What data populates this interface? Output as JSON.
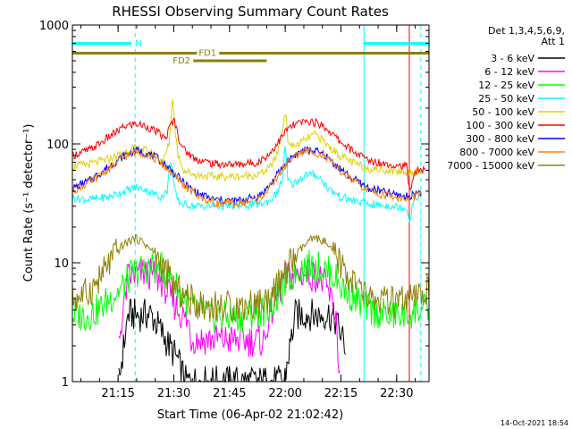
{
  "chart_data": {
    "type": "line",
    "title": "RHESSI Observing Summary Count Rates",
    "xlabel": "Start Time (06-Apr-02 21:02:42)",
    "ylabel": "Count Rate (s⁻¹ detector⁻¹)",
    "yscale": "log",
    "ylim": [
      1,
      1000
    ],
    "xlim_minutes": [
      0,
      96
    ],
    "x_ticks": [
      {
        "label": "21:15",
        "minutes": 12.3
      },
      {
        "label": "21:30",
        "minutes": 27.3
      },
      {
        "label": "21:45",
        "minutes": 42.3
      },
      {
        "label": "22:00",
        "minutes": 57.3
      },
      {
        "label": "22:15",
        "minutes": 72.3
      },
      {
        "label": "22:30",
        "minutes": 87.3
      }
    ],
    "y_ticks": [
      {
        "label": "1",
        "value": 1
      },
      {
        "label": "10",
        "value": 10
      },
      {
        "label": "100",
        "value": 100
      },
      {
        "label": "1000",
        "value": 1000
      }
    ],
    "legend": {
      "placement": "right",
      "header": [
        "Det 1,3,4,5,6,9,",
        "Att 1"
      ],
      "entries": [
        {
          "label": "3 - 6 keV",
          "color": "#000000"
        },
        {
          "label": "6 - 12 keV",
          "color": "#ff00ff"
        },
        {
          "label": "12 - 25 keV",
          "color": "#00ff00"
        },
        {
          "label": "25 - 50 keV",
          "color": "#00ffff"
        },
        {
          "label": "50 - 100 keV",
          "color": "#e0d000"
        },
        {
          "label": "100 - 300 keV",
          "color": "#ff0000"
        },
        {
          "label": "300 - 800 keV",
          "color": "#0000ff"
        },
        {
          "label": "800 - 7000 keV",
          "color": "#ff8000"
        },
        {
          "label": "7000 - 15000 keV",
          "color": "#8b8000"
        }
      ]
    },
    "flags": [
      {
        "label": "N",
        "color": "#00ffff",
        "value": 700,
        "segments": [
          [
            0,
            15.9
          ],
          [
            78.5,
            96
          ]
        ]
      },
      {
        "label": "FD1",
        "color": "#8b8000",
        "value": 580,
        "segments": [
          [
            0,
            52.3
          ],
          [
            52.3,
            96
          ]
        ]
      },
      {
        "label": "FD2",
        "color": "#8b8000",
        "value": 500,
        "segments": [
          [
            31.5,
            52.3
          ]
        ]
      }
    ],
    "markers": [
      {
        "kind": "dashed",
        "color": "#00ffff",
        "minutes": 16.9
      },
      {
        "kind": "dashed",
        "color": "#00ffff",
        "minutes": 93.8
      },
      {
        "kind": "solid",
        "color": "#00ffff",
        "minutes": 78.5
      },
      {
        "kind": "solid",
        "color": "#ff0000",
        "minutes": 90.7
      }
    ],
    "series": [
      {
        "name": "3 - 6 keV",
        "color": "#000000",
        "minutes": [
          12.5,
          15,
          18,
          21,
          23.5,
          26,
          28,
          30.5,
          57,
          60,
          63,
          66,
          69,
          71,
          73.5
        ],
        "values": [
          1,
          3.7,
          3.6,
          3.7,
          2.8,
          2,
          1.6,
          1,
          1,
          3.6,
          3.7,
          3.6,
          3.7,
          3.2,
          2
        ]
      },
      {
        "name": "6 - 12 keV",
        "color": "#ff00ff",
        "minutes": [
          12.5,
          15,
          18,
          21,
          24,
          26.5,
          29,
          31.5,
          31.8,
          52,
          52.3,
          55,
          57,
          60,
          63,
          66,
          68,
          69.5,
          71,
          72
        ],
        "values": [
          2.2,
          7.5,
          8.1,
          8,
          7,
          5,
          3.8,
          3,
          2.3,
          2.2,
          3,
          5,
          7.5,
          8,
          8,
          7.7,
          6.5,
          5,
          3.5,
          1
        ]
      },
      {
        "name": "12 - 25 keV",
        "color": "#00ff00",
        "minutes": [
          0,
          4,
          7,
          10,
          13,
          16,
          18,
          21,
          24,
          27,
          30,
          33,
          38,
          45,
          52,
          55,
          58,
          61,
          64,
          67,
          70,
          73,
          76,
          80,
          85,
          90,
          93,
          96
        ],
        "values": [
          3.6,
          3.6,
          4,
          5,
          6,
          8,
          8.6,
          9.2,
          8.9,
          7,
          5,
          4,
          3.5,
          3.5,
          4,
          5,
          7,
          9,
          9.5,
          9,
          8,
          6,
          5,
          4,
          3.6,
          3.6,
          4,
          4
        ]
      },
      {
        "name": "25 - 50 keV",
        "color": "#00ffff",
        "minutes": [
          0,
          5,
          10,
          14,
          16.9,
          19,
          21,
          24,
          25.5,
          26.5,
          27.5,
          28.5,
          30,
          33,
          38,
          44,
          50,
          53,
          55,
          56.5,
          57.3,
          58,
          59,
          61,
          63,
          65.5,
          67,
          69,
          72,
          76,
          80,
          86,
          90,
          90.8,
          91.4,
          92.5,
          94
        ],
        "values": [
          35,
          34,
          36,
          40,
          43,
          42,
          39,
          36,
          40,
          75,
          40,
          33,
          31,
          30,
          30,
          30,
          31,
          33,
          38,
          50,
          95,
          50,
          45,
          50,
          55,
          55,
          50,
          42,
          36,
          33,
          31,
          30,
          29,
          22,
          30,
          35,
          38
        ]
      },
      {
        "name": "50 - 100 keV",
        "color": "#e0d000",
        "minutes": [
          0,
          5,
          10,
          14,
          16,
          19,
          22,
          24.5,
          26,
          27,
          27.8,
          28.5,
          30,
          33,
          38,
          44,
          50,
          53,
          55,
          56.5,
          57.3,
          58,
          59,
          61,
          64,
          65.5,
          67,
          69,
          72,
          76,
          80,
          85,
          90,
          94
        ],
        "values": [
          65,
          68,
          75,
          85,
          92,
          90,
          82,
          72,
          100,
          250,
          120,
          80,
          60,
          55,
          53,
          53,
          55,
          62,
          80,
          130,
          190,
          110,
          95,
          100,
          115,
          120,
          110,
          95,
          80,
          68,
          62,
          60,
          58,
          58
        ]
      },
      {
        "name": "100 - 300 keV",
        "color": "#ff0000",
        "minutes": [
          0,
          5,
          10,
          14,
          17,
          20,
          23,
          25,
          26.5,
          27.5,
          28.5,
          30,
          33,
          38,
          44,
          50,
          53,
          56,
          58,
          61,
          64,
          67,
          69,
          72,
          76,
          80,
          85,
          90,
          90.6,
          92,
          93,
          95
        ],
        "values": [
          80,
          90,
          115,
          140,
          148,
          140,
          125,
          110,
          145,
          160,
          115,
          90,
          75,
          68,
          67,
          70,
          82,
          110,
          135,
          150,
          155,
          145,
          130,
          105,
          85,
          72,
          68,
          65,
          40,
          55,
          60,
          60
        ]
      },
      {
        "name": "300 - 800 keV",
        "color": "#0000ff",
        "minutes": [
          0,
          5,
          10,
          14,
          17,
          20,
          23,
          26,
          28,
          31,
          34,
          38,
          44,
          50,
          53,
          56,
          59,
          62,
          65,
          68,
          71,
          75,
          80,
          86,
          90,
          94
        ],
        "values": [
          42,
          50,
          65,
          80,
          88,
          84,
          75,
          63,
          54,
          44,
          38,
          34,
          33,
          36,
          44,
          60,
          78,
          88,
          88,
          80,
          66,
          52,
          42,
          38,
          36,
          40
        ]
      },
      {
        "name": "800 - 7000 keV",
        "color": "#ff8000",
        "minutes": [
          0,
          5,
          10,
          14,
          17,
          20,
          23,
          26,
          28,
          31,
          34,
          38,
          44,
          50,
          53,
          56,
          59,
          62,
          65,
          68,
          71,
          75,
          80,
          86,
          90,
          94
        ],
        "values": [
          40,
          48,
          62,
          78,
          86,
          82,
          72,
          60,
          52,
          42,
          36,
          32,
          31,
          34,
          42,
          58,
          75,
          86,
          86,
          78,
          63,
          50,
          40,
          36,
          34,
          38
        ]
      },
      {
        "name": "7000 - 15000 keV",
        "color": "#8b8000",
        "minutes": [
          0,
          4,
          7,
          10,
          13,
          16,
          17,
          19,
          22,
          25,
          28,
          31,
          34,
          38,
          45,
          52,
          55,
          58,
          61,
          64,
          66,
          68,
          71,
          74,
          77,
          80,
          85,
          90,
          93,
          96
        ],
        "values": [
          5,
          5.5,
          7,
          10,
          13.5,
          15.8,
          16,
          15,
          12,
          8.5,
          6,
          5,
          4.5,
          4.3,
          4.3,
          4.7,
          6,
          9,
          12.5,
          15.5,
          16,
          15,
          11,
          8,
          6,
          5,
          4.6,
          4.6,
          5,
          6
        ]
      }
    ]
  },
  "footer": {
    "date_stamp": "14-Oct-2021 18:54"
  }
}
